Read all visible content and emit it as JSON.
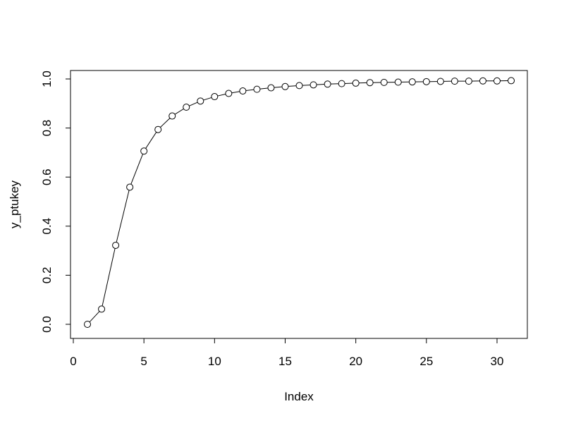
{
  "chart_data": {
    "type": "line",
    "xlabel": "Index",
    "ylabel": "y_ptukey",
    "xlim": [
      0,
      31
    ],
    "ylim": [
      0.0,
      1.0
    ],
    "x_ticks": [
      "0",
      "5",
      "10",
      "15",
      "20",
      "25",
      "30"
    ],
    "y_ticks": [
      "0.0",
      "0.2",
      "0.4",
      "0.6",
      "0.8",
      "1.0"
    ],
    "marker": "open-circle",
    "line_color": "#000000",
    "grid": false,
    "series": [
      {
        "x": [
          1,
          2,
          3,
          4,
          5,
          6,
          7,
          8,
          9,
          10,
          11,
          12,
          13,
          14,
          15,
          16,
          17,
          18,
          19,
          20,
          21,
          22,
          23,
          24,
          25,
          26,
          27,
          28,
          29,
          30,
          31
        ],
        "values": [
          0.0,
          0.062,
          0.322,
          0.559,
          0.706,
          0.794,
          0.849,
          0.885,
          0.91,
          0.928,
          0.941,
          0.951,
          0.958,
          0.964,
          0.969,
          0.973,
          0.976,
          0.979,
          0.981,
          0.983,
          0.985,
          0.986,
          0.987,
          0.988,
          0.989,
          0.99,
          0.991,
          0.991,
          0.992,
          0.992,
          0.993
        ]
      }
    ]
  }
}
